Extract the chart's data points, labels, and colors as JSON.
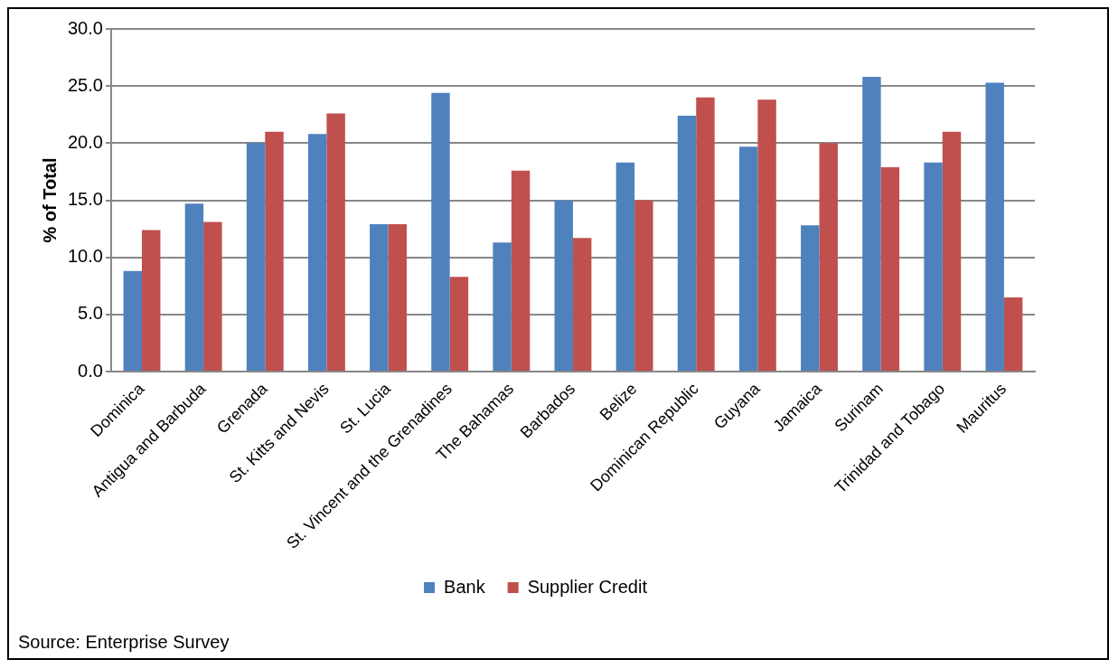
{
  "chart_data": {
    "type": "bar",
    "ylabel": "% of Total",
    "categories": [
      "Dominica",
      "Antigua and Barbuda",
      "Grenada",
      "St. Kitts and Nevis",
      "St. Lucia",
      "St. Vincent and the Grenadines",
      "The Bahamas",
      "Barbados",
      "Belize",
      "Dominican Republic",
      "Guyana",
      "Jamaica",
      "Surinam",
      "Trinidad and Tobago",
      "Mauritus"
    ],
    "series": [
      {
        "name": "Bank",
        "color": "#4f81bd",
        "values": [
          8.8,
          14.7,
          20.0,
          20.8,
          12.9,
          24.4,
          11.3,
          15.0,
          18.3,
          22.4,
          19.7,
          12.8,
          25.8,
          18.3,
          25.3
        ]
      },
      {
        "name": "Supplier Credit",
        "color": "#c0504d",
        "values": [
          12.4,
          13.1,
          21.0,
          22.6,
          12.9,
          8.3,
          17.6,
          11.7,
          15.0,
          24.0,
          23.8,
          20.0,
          17.9,
          21.0,
          6.5
        ]
      }
    ],
    "ylim": [
      0,
      30
    ],
    "yticks": [
      {
        "value": 0,
        "label": "0.0"
      },
      {
        "value": 5,
        "label": "5.0"
      },
      {
        "value": 10,
        "label": "10.0"
      },
      {
        "value": 15,
        "label": "15.0"
      },
      {
        "value": 20,
        "label": "20.0"
      },
      {
        "value": 25,
        "label": "25.0"
      },
      {
        "value": 30,
        "label": "30.0"
      }
    ],
    "grid": "y",
    "legend": "bottom",
    "annotations": [
      "Source: Enterprise Survey"
    ]
  }
}
